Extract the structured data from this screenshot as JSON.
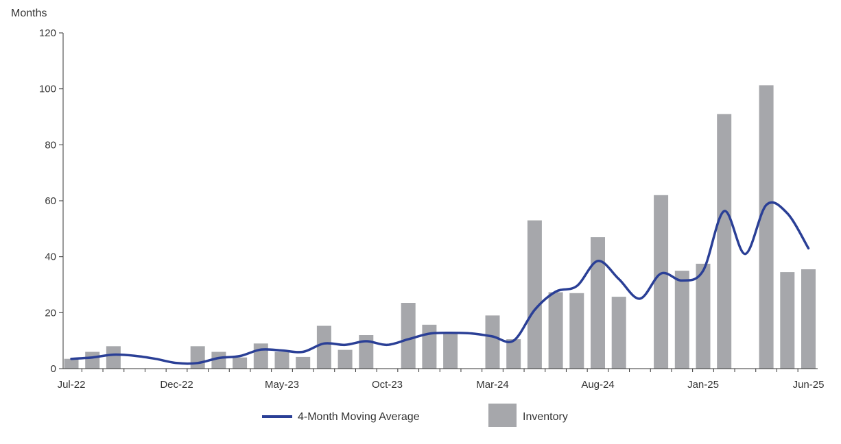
{
  "chart_data": {
    "type": "bar",
    "ylabel": "Months",
    "ylim": [
      0,
      120
    ],
    "yticks": [
      0,
      20,
      40,
      60,
      80,
      100,
      120
    ],
    "grid": false,
    "legend_position": "bottom",
    "categories": [
      "Jul-22",
      "Aug-22",
      "Sep-22",
      "Oct-22",
      "Nov-22",
      "Dec-22",
      "Jan-23",
      "Feb-23",
      "Mar-23",
      "Apr-23",
      "May-23",
      "Jun-23",
      "Jul-23",
      "Aug-23",
      "Sep-23",
      "Oct-23",
      "Nov-23",
      "Dec-23",
      "Jan-24",
      "Feb-24",
      "Mar-24",
      "Apr-24",
      "May-24",
      "Jun-24",
      "Jul-24",
      "Aug-24",
      "Sep-24",
      "Oct-24",
      "Nov-24",
      "Dec-24",
      "Jan-25",
      "Feb-25",
      "Mar-25",
      "Apr-25",
      "May-25",
      "Jun-25"
    ],
    "tick_labels": [
      "Jul-22",
      "Dec-22",
      "May-23",
      "Oct-23",
      "Mar-24",
      "Aug-24",
      "Jan-25",
      "Jun-25"
    ],
    "series": [
      {
        "name": "Inventory",
        "type": "bar",
        "color": "#a6a7ab",
        "values": [
          3.5,
          6,
          8,
          null,
          null,
          null,
          8,
          6,
          4,
          9,
          6,
          4.2,
          15.3,
          6.7,
          12,
          null,
          23.5,
          15.7,
          12.5,
          null,
          19,
          10.5,
          53,
          27.3,
          27,
          47,
          25.7,
          null,
          62,
          35,
          37.5,
          91,
          null,
          101.3,
          34.5,
          35.5
        ]
      },
      {
        "name": "4-Month Moving Average",
        "type": "line",
        "color": "#2a3f96",
        "values": [
          3.5,
          4,
          5,
          4.6,
          3.5,
          2,
          2,
          3.8,
          4.5,
          6.8,
          6.5,
          6,
          9,
          8.5,
          9.8,
          8.5,
          10.5,
          12.5,
          12.8,
          12.6,
          11.5,
          10,
          21,
          27.5,
          29.5,
          38.5,
          32,
          25,
          34,
          31.5,
          35,
          56.3,
          41,
          58.5,
          55.5,
          43
        ]
      }
    ]
  }
}
